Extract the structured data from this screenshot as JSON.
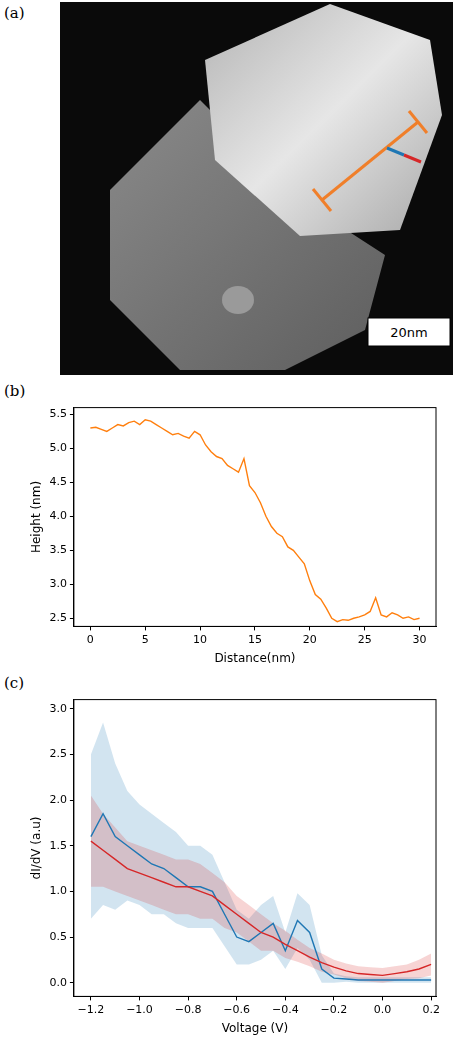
{
  "image_panel": {
    "panel": "(a)",
    "scale_bar": "20nm"
  },
  "chart_data": [
    {
      "type": "line",
      "panel": "(b)",
      "x_label": "Distance(nm)",
      "y_label": "Height (nm)",
      "x": [
        0,
        0.5,
        1,
        1.5,
        2,
        2.5,
        3,
        3.5,
        4,
        4.5,
        5,
        5.5,
        6,
        6.5,
        7,
        7.5,
        8,
        8.5,
        9,
        9.5,
        10,
        10.5,
        11,
        11.5,
        12,
        12.5,
        13,
        13.5,
        14,
        14.5,
        15,
        15.5,
        16,
        16.5,
        17,
        17.5,
        18,
        18.5,
        19,
        19.5,
        20,
        20.5,
        21,
        21.5,
        22,
        22.5,
        23,
        23.5,
        24,
        24.5,
        25,
        25.5,
        26,
        26.5,
        27,
        27.5,
        28,
        28.5,
        29,
        29.5,
        30
      ],
      "series": [
        {
          "color": "#ff7f0e",
          "values": [
            5.3,
            5.31,
            5.28,
            5.25,
            5.3,
            5.35,
            5.33,
            5.38,
            5.4,
            5.35,
            5.42,
            5.4,
            5.35,
            5.3,
            5.25,
            5.2,
            5.22,
            5.18,
            5.15,
            5.25,
            5.2,
            5.05,
            4.95,
            4.88,
            4.85,
            4.75,
            4.7,
            4.65,
            4.85,
            4.45,
            4.35,
            4.2,
            4.0,
            3.85,
            3.75,
            3.7,
            3.55,
            3.5,
            3.4,
            3.3,
            3.05,
            2.85,
            2.78,
            2.65,
            2.5,
            2.45,
            2.48,
            2.47,
            2.5,
            2.52,
            2.55,
            2.6,
            2.8,
            2.55,
            2.52,
            2.58,
            2.55,
            2.5,
            2.52,
            2.48,
            2.5
          ]
        }
      ],
      "xlim": [
        -1.5,
        31.5
      ],
      "ylim": [
        2.38,
        5.6
      ],
      "xticks": [
        0,
        5,
        10,
        15,
        20,
        25,
        30
      ],
      "yticks": [
        2.5,
        {
          "value": 3,
          "label": "3.0"
        },
        3.5,
        {
          "value": 4,
          "label": "4.0"
        },
        4.5,
        {
          "value": 5,
          "label": "5.0"
        },
        5.5
      ],
      "grid": false
    },
    {
      "type": "line",
      "panel": "(c)",
      "x_label": "Voltage (V)",
      "y_label": "dI/dV (a.u)",
      "x": [
        -1.2,
        -1.15,
        -1.1,
        -1.05,
        -1.0,
        -0.95,
        -0.9,
        -0.85,
        -0.8,
        -0.75,
        -0.7,
        -0.65,
        -0.6,
        -0.55,
        -0.5,
        -0.45,
        -0.4,
        -0.35,
        -0.3,
        -0.25,
        -0.2,
        -0.15,
        -0.1,
        -0.05,
        0,
        0.05,
        0.1,
        0.15,
        0.2
      ],
      "series": [
        {
          "color": "#d62728",
          "values": [
            1.55,
            1.45,
            1.35,
            1.25,
            1.2,
            1.15,
            1.1,
            1.05,
            1.05,
            1.0,
            0.95,
            0.85,
            0.75,
            0.65,
            0.55,
            0.5,
            0.42,
            0.35,
            0.28,
            0.22,
            0.17,
            0.13,
            0.1,
            0.09,
            0.08,
            0.1,
            0.12,
            0.15,
            0.2
          ],
          "spread": [
            0.5,
            0.4,
            0.35,
            0.3,
            0.3,
            0.3,
            0.3,
            0.3,
            0.3,
            0.3,
            0.25,
            0.25,
            0.2,
            0.2,
            0.2,
            0.15,
            0.15,
            0.12,
            0.1,
            0.1,
            0.08,
            0.08,
            0.08,
            0.08,
            0.08,
            0.08,
            0.08,
            0.1,
            0.12
          ]
        },
        {
          "color": "#1f77b4",
          "values": [
            1.6,
            1.85,
            1.6,
            1.5,
            1.4,
            1.3,
            1.25,
            1.15,
            1.05,
            1.05,
            1.0,
            0.75,
            0.5,
            0.45,
            0.55,
            0.65,
            0.35,
            0.68,
            0.55,
            0.15,
            0.05,
            0.04,
            0.03,
            0.03,
            0.03,
            0.03,
            0.03,
            0.03,
            0.03
          ],
          "spread": [
            0.9,
            1.0,
            0.8,
            0.6,
            0.55,
            0.55,
            0.5,
            0.5,
            0.45,
            0.45,
            0.4,
            0.35,
            0.3,
            0.25,
            0.3,
            0.3,
            0.2,
            0.3,
            0.3,
            0.15,
            0.05,
            0.03,
            0.03,
            0.03,
            0.03,
            0.03,
            0.03,
            0.03,
            0.03
          ]
        }
      ],
      "xlim": [
        -1.27,
        0.22
      ],
      "ylim": [
        -0.15,
        3.1
      ],
      "xticks": [
        {
          "value": -1.2,
          "label": "−1.2"
        },
        {
          "value": -1.0,
          "label": "−1.0"
        },
        {
          "value": -0.8,
          "label": "−0.8"
        },
        {
          "value": -0.6,
          "label": "−0.6"
        },
        {
          "value": -0.4,
          "label": "−0.4"
        },
        {
          "value": -0.2,
          "label": "−0.2"
        },
        {
          "value": 0,
          "label": "0.0"
        },
        0.2
      ],
      "yticks": [
        {
          "value": 0,
          "label": "0.0"
        },
        0.5,
        {
          "value": 1,
          "label": "1.0"
        },
        1.5,
        {
          "value": 2,
          "label": "2.0"
        },
        2.5,
        {
          "value": 3,
          "label": "3.0"
        }
      ],
      "grid": false
    }
  ]
}
